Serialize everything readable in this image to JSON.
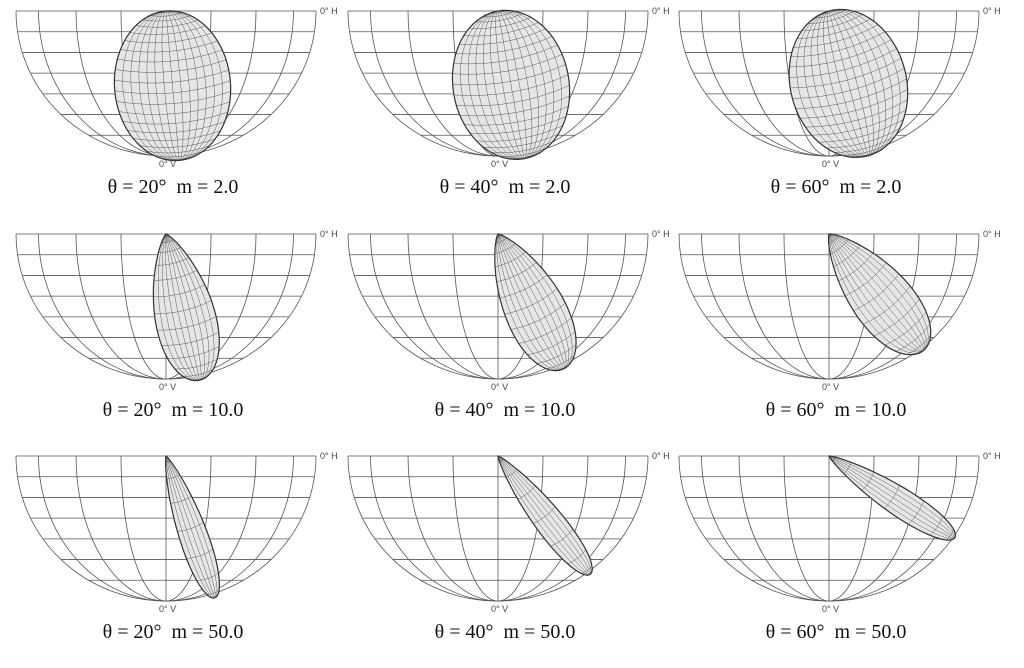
{
  "figure": {
    "axis_labels": {
      "horizontal": "0° H",
      "vertical": "0° V"
    },
    "panels": [
      {
        "theta_label": "θ = 20°",
        "m_label": "m = 2.0",
        "theta_deg": 20,
        "m": 2.0
      },
      {
        "theta_label": "θ = 40°",
        "m_label": "m = 2.0",
        "theta_deg": 40,
        "m": 2.0
      },
      {
        "theta_label": "θ = 60°",
        "m_label": "m = 2.0",
        "theta_deg": 60,
        "m": 2.0
      },
      {
        "theta_label": "θ = 20°",
        "m_label": "m = 10.0",
        "theta_deg": 20,
        "m": 10.0
      },
      {
        "theta_label": "θ = 40°",
        "m_label": "m = 10.0",
        "theta_deg": 40,
        "m": 10.0
      },
      {
        "theta_label": "θ = 60°",
        "m_label": "m = 10.0",
        "theta_deg": 60,
        "m": 10.0
      },
      {
        "theta_label": "θ = 20°",
        "m_label": "m = 50.0",
        "theta_deg": 20,
        "m": 50.0
      },
      {
        "theta_label": "θ = 40°",
        "m_label": "m = 50.0",
        "theta_deg": 40,
        "m": 50.0
      },
      {
        "theta_label": "θ = 60°",
        "m_label": "m = 50.0",
        "theta_deg": 60,
        "m": 50.0
      }
    ]
  },
  "colors": {
    "grid": "#555555",
    "lobe_fill": "#e6e6e6",
    "lobe_mesh": "#333333",
    "text": "#111111"
  }
}
